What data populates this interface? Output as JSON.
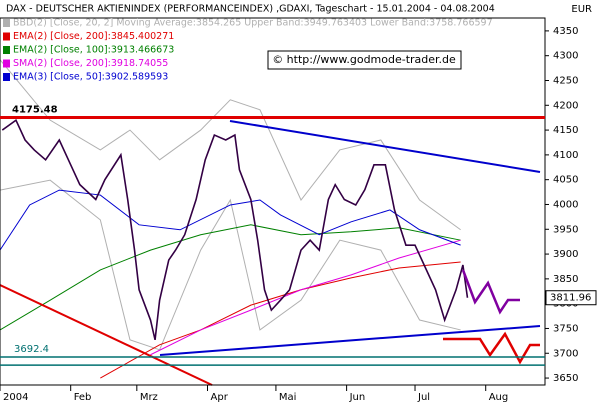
{
  "chart_data": {
    "type": "line",
    "title": "DAX - DEUTSCHER AKTIENINDEX (PERFORMANCEINDEX) ,GDAXI, Tageschart - 15.01.2004 - 04.08.2004",
    "currency": "EUR",
    "source": "© http://www.godmode-trader.de",
    "xlim": [
      1,
      240
    ],
    "xticks": [
      {
        "value": 1,
        "label": "2004"
      },
      {
        "value": 32,
        "label": "Feb"
      },
      {
        "value": 61,
        "label": "Mrz"
      },
      {
        "value": 92,
        "label": "Apr"
      },
      {
        "value": 122,
        "label": "Mai"
      },
      {
        "value": 153,
        "label": "Jun"
      },
      {
        "value": 183,
        "label": "Jul"
      },
      {
        "value": 214,
        "label": "Aug"
      }
    ],
    "ylim": [
      3636,
      4376
    ],
    "yticks": [
      3650,
      3700,
      3750,
      3800,
      3850,
      3900,
      3950,
      4000,
      4050,
      4100,
      4150,
      4200,
      4250,
      4300,
      4350
    ],
    "price": {
      "color": "#330044",
      "x": [
        2,
        8,
        12,
        16,
        21,
        27,
        32,
        36,
        43,
        47,
        54,
        57,
        60,
        62,
        67,
        69,
        71,
        75,
        78,
        82,
        87,
        91,
        95,
        100,
        104,
        106,
        111,
        114,
        117,
        120,
        124,
        128,
        133,
        137,
        141,
        145,
        148,
        152,
        157,
        161,
        165,
        170,
        174,
        179,
        183,
        187,
        192,
        196,
        201,
        204,
        206
      ],
      "values": [
        4150,
        4170,
        4130,
        4110,
        4090,
        4130,
        4080,
        4040,
        4010,
        4050,
        4100,
        4010,
        3908,
        3828,
        3767,
        3727,
        3807,
        3888,
        3908,
        3939,
        4010,
        4090,
        4140,
        4130,
        4140,
        4070,
        4010,
        3928,
        3828,
        3787,
        3807,
        3828,
        3908,
        3928,
        3908,
        4010,
        4040,
        4010,
        3999,
        4030,
        4080,
        4080,
        3989,
        3918,
        3918,
        3878,
        3828,
        3767,
        3828,
        3878,
        3812
      ]
    },
    "last_value": 3811.96,
    "levels": [
      4175.48,
      3692.4
    ],
    "hlines": [
      3676
    ],
    "series": [
      {
        "name": "BBD(2) [Close, 20, 2] Moving Average:3854.265 Upper Band:3949.763403 Lower Band:3758.766597",
        "color": "#b0b0b0",
        "x": [
          1,
          23,
          45,
          58,
          71,
          89,
          102,
          115,
          133,
          150,
          168,
          185,
          203
        ],
        "values": [
          4292,
          4170,
          4110,
          4150,
          4090,
          4150,
          4211,
          4191,
          4009,
          4110,
          4130,
          4009,
          3949
        ],
        "lower": [
          4029,
          4049,
          3969,
          3727,
          3707,
          3908,
          4009,
          3747,
          3807,
          3928,
          3908,
          3767,
          3747
        ]
      },
      {
        "name": "EMA(2) [Close, 200]:3845.400271",
        "color": "#e00000",
        "x": [
          45,
          71,
          89,
          111,
          133,
          155,
          176,
          203
        ],
        "values": [
          3650,
          3717,
          3747,
          3797,
          3828,
          3852,
          3872,
          3884
        ]
      },
      {
        "name": "EMA(2) [Close, 100]:3913.466673",
        "color": "#008000",
        "x": [
          1,
          23,
          45,
          67,
          89,
          111,
          133,
          155,
          176,
          203
        ],
        "values": [
          3747,
          3807,
          3868,
          3908,
          3939,
          3959,
          3939,
          3945,
          3953,
          3928
        ]
      },
      {
        "name": "SMA(2) [Close, 200]:3918.74055",
        "color": "#e000e0",
        "x": [
          67,
          89,
          111,
          133,
          155,
          176,
          203
        ],
        "values": [
          3697,
          3747,
          3787,
          3828,
          3858,
          3892,
          3928
        ]
      },
      {
        "name": "EMA(3) [Close, 50]:3902.589593",
        "color": "#0000d0",
        "x": [
          1,
          14,
          27,
          45,
          62,
          80,
          102,
          115,
          124,
          141,
          155,
          172,
          185,
          203
        ],
        "values": [
          3908,
          3999,
          4029,
          4019,
          3959,
          3949,
          3999,
          4009,
          3979,
          3939,
          3965,
          3989,
          3949,
          3918
        ]
      }
    ]
  }
}
